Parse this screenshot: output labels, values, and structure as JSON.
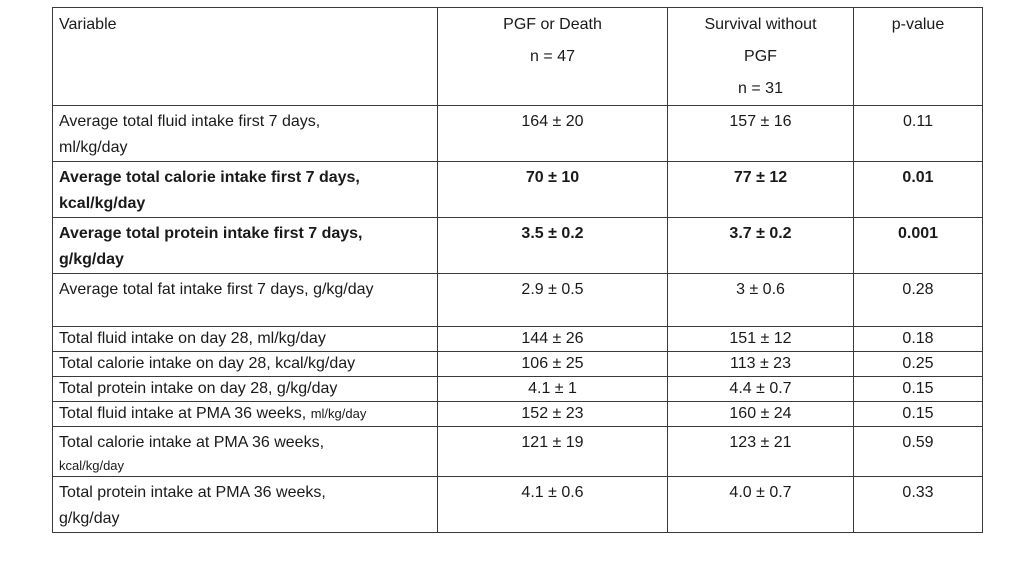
{
  "table": {
    "headers": {
      "variable": "Variable",
      "group1_line1": "PGF or Death",
      "group1_line2": "n = 47",
      "group2_line1": "Survival without",
      "group2_line2": "PGF",
      "group2_line3": "n = 31",
      "pvalue": "p-value"
    },
    "rows": [
      {
        "label": "Average total fluid intake first 7 days,",
        "unit": "ml/kg/day",
        "g1": "164 ± 20",
        "g2": "157 ± 16",
        "p": "0.11"
      },
      {
        "label": "Average total calorie intake first 7 days,",
        "unit": "kcal/kg/day",
        "g1": "70 ± 10",
        "g2": "77 ± 12",
        "p": "0.01"
      },
      {
        "label": "Average total protein intake first 7 days,",
        "unit": "g/kg/day",
        "g1": "3.5 ± 0.2",
        "g2": "3.7 ± 0.2",
        "p": "0.001"
      },
      {
        "label": "Average total fat intake first 7 days, g/kg/day",
        "g1": "2.9 ± 0.5",
        "g2": "3 ± 0.6",
        "p": "0.28"
      },
      {
        "label": "Total fluid intake on day 28, ml/kg/day",
        "g1": "144 ± 26",
        "g2": "151 ± 12",
        "p": "0.18"
      },
      {
        "label": "Total calorie intake on day 28, kcal/kg/day",
        "g1": "106 ± 25",
        "g2": "113 ± 23",
        "p": "0.25"
      },
      {
        "label": "Total protein intake on day 28, g/kg/day",
        "g1": "4.1 ± 1",
        "g2": "4.4 ± 0.7",
        "p": "0.15"
      },
      {
        "label": "Total fluid intake at PMA 36 weeks,",
        "unit": "ml/kg/day",
        "g1": "152 ± 23",
        "g2": "160 ± 24",
        "p": "0.15"
      },
      {
        "label": "Total calorie intake at PMA 36 weeks,",
        "unit": "kcal/kg/day",
        "g1": "121 ± 19",
        "g2": "123 ± 21",
        "p": "0.59"
      },
      {
        "label": "Total protein intake at PMA 36 weeks,",
        "unit": "g/kg/day",
        "g1": "4.1 ± 0.6",
        "g2": "4.0 ± 0.7",
        "p": "0.33"
      }
    ]
  }
}
